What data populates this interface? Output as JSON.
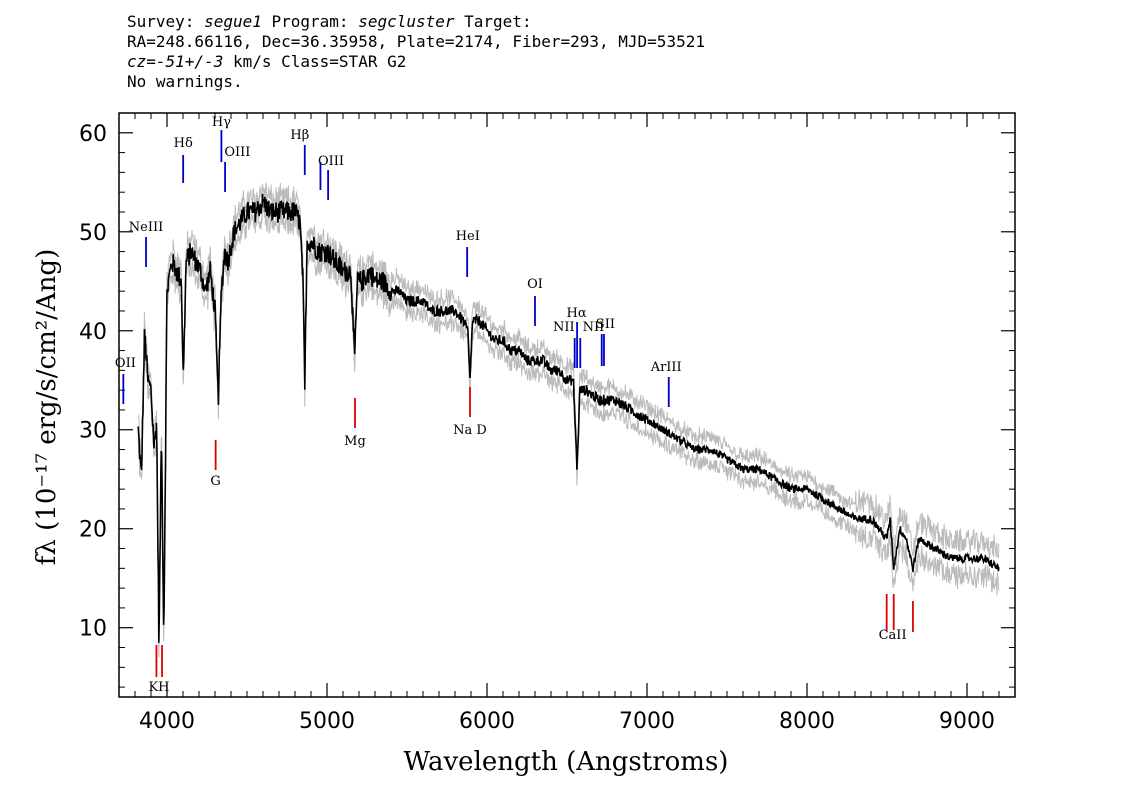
{
  "header": {
    "line1_a": "Survey: ",
    "line1_survey": "segue1",
    "line1_b": " Program: ",
    "line1_program": "segcluster",
    "line1_c": " Target:",
    "line2": "RA=248.66116, Dec=36.35958, Plate=2174, Fiber=293, MJD=53521",
    "line3_cz": "cz=-51+/-3",
    "line3_rest": " km/s Class=STAR G2",
    "line4": "No warnings."
  },
  "chart_data": {
    "type": "line",
    "xlabel": "Wavelength (Angstroms)",
    "ylabel": "fλ (10⁻¹⁷ erg/s/cm²/Ang)",
    "xlim": [
      3700,
      9300
    ],
    "ylim": [
      3,
      62
    ],
    "xticks": [
      4000,
      5000,
      6000,
      7000,
      8000,
      9000
    ],
    "yticks": [
      10,
      20,
      30,
      40,
      50,
      60
    ],
    "colors": {
      "flux": "#000000",
      "error": "#bbbbbb",
      "emission": "#0000cc",
      "absorption": "#dd0000"
    },
    "spectrum": {
      "x": [
        3820,
        3840,
        3860,
        3880,
        3900,
        3920,
        3935,
        3950,
        3965,
        3980,
        4000,
        4030,
        4060,
        4090,
        4101,
        4120,
        4150,
        4180,
        4210,
        4240,
        4270,
        4300,
        4320,
        4340,
        4360,
        4380,
        4420,
        4460,
        4500,
        4550,
        4600,
        4650,
        4700,
        4750,
        4800,
        4830,
        4850,
        4861,
        4875,
        4900,
        4950,
        5000,
        5050,
        5100,
        5150,
        5172,
        5190,
        5220,
        5270,
        5300,
        5350,
        5400,
        5450,
        5500,
        5550,
        5600,
        5650,
        5700,
        5750,
        5800,
        5850,
        5880,
        5893,
        5910,
        5950,
        6000,
        6050,
        6100,
        6150,
        6200,
        6250,
        6300,
        6350,
        6400,
        6450,
        6500,
        6540,
        6563,
        6580,
        6620,
        6700,
        6800,
        6900,
        7000,
        7100,
        7200,
        7300,
        7400,
        7500,
        7600,
        7700,
        7800,
        7900,
        8000,
        8100,
        8200,
        8300,
        8400,
        8450,
        8498,
        8520,
        8542,
        8580,
        8620,
        8662,
        8700,
        8800,
        8900,
        9000,
        9100,
        9200
      ],
      "y": [
        30,
        25,
        40,
        35,
        34,
        28,
        31,
        8,
        30,
        9,
        44,
        47,
        46,
        45,
        35,
        47,
        48,
        47,
        46,
        44,
        46,
        42,
        33,
        44,
        48,
        47,
        50,
        51,
        52,
        52,
        53,
        52,
        52,
        52,
        52,
        51,
        45,
        34,
        49,
        49,
        48,
        48,
        47,
        46,
        46,
        37,
        45,
        45,
        46,
        45,
        45,
        44,
        44,
        43,
        43,
        43,
        42,
        42,
        42,
        42,
        41,
        40,
        35,
        41,
        41,
        40,
        39,
        39,
        38,
        38,
        37,
        37,
        37,
        36,
        36,
        35,
        35,
        26,
        34,
        34,
        33,
        33,
        32,
        31,
        30,
        29,
        28,
        28,
        27,
        26,
        26,
        25,
        24,
        24,
        23,
        22,
        21,
        21,
        20,
        19,
        21,
        16,
        20,
        19,
        16,
        19,
        18,
        17,
        17,
        17,
        16
      ]
    },
    "lines": [
      {
        "label": "NeIII",
        "x": 3869,
        "type": "emission"
      },
      {
        "label": "OII",
        "x": 3727,
        "type": "emission"
      },
      {
        "label": "Hδ",
        "x": 4101,
        "type": "emission"
      },
      {
        "label": "Hγ",
        "x": 4340,
        "type": "emission"
      },
      {
        "label": "OIII",
        "x": 4363,
        "type": "emission"
      },
      {
        "label": "Hβ",
        "x": 4861,
        "type": "emission"
      },
      {
        "label": "OIII",
        "x": 4959,
        "type": "emission"
      },
      {
        "label": "OIII",
        "x": 5007,
        "type": "emission"
      },
      {
        "label": "HeI",
        "x": 5876,
        "type": "emission"
      },
      {
        "label": "OI",
        "x": 6300,
        "type": "emission"
      },
      {
        "label": "NII",
        "x": 6548,
        "type": "emission"
      },
      {
        "label": "Hα",
        "x": 6563,
        "type": "emission"
      },
      {
        "label": "NII",
        "x": 6583,
        "type": "emission"
      },
      {
        "label": "SII",
        "x": 6717,
        "type": "emission"
      },
      {
        "label": "SII",
        "x": 6731,
        "type": "emission"
      },
      {
        "label": "ArIII",
        "x": 7136,
        "type": "emission"
      },
      {
        "label": "K",
        "x": 3934,
        "type": "absorption"
      },
      {
        "label": "H",
        "x": 3969,
        "type": "absorption"
      },
      {
        "label": "G",
        "x": 4304,
        "type": "absorption"
      },
      {
        "label": "Mg",
        "x": 5175,
        "type": "absorption"
      },
      {
        "label": "Na D",
        "x": 5894,
        "type": "absorption"
      },
      {
        "label": "CaII",
        "x": 8498,
        "type": "absorption"
      },
      {
        "label": "CaII",
        "x": 8542,
        "type": "absorption"
      },
      {
        "label": "CaII",
        "x": 8662,
        "type": "absorption"
      }
    ],
    "line_label_text": {
      "neiii": "NeIII",
      "oii": "OII",
      "hdelta": "Hδ",
      "hgamma": "Hγ",
      "oiii_a": "OIII",
      "hbeta": "Hβ",
      "oiii_b": "OIII",
      "hei": "HeI",
      "oi": "OI",
      "nii": "NII",
      "halpha": "Hα",
      "nii_sii": "NII",
      "sii": "SII",
      "ariii": "ArIII",
      "kh": "KH",
      "g": "G",
      "mg": "Mg",
      "nad": "Na D",
      "caii": "CaII"
    }
  }
}
